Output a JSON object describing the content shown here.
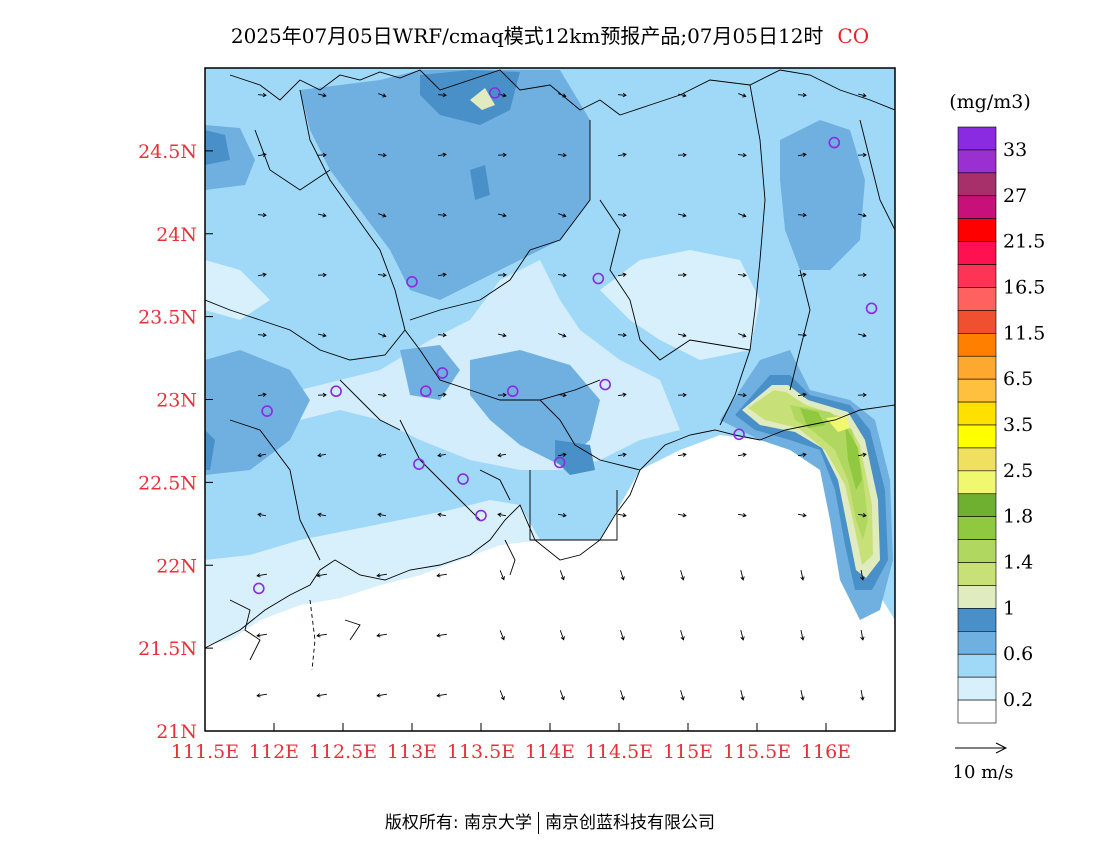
{
  "title": {
    "main": "2025年07月05日WRF/cmaq模式12km预报产品;07月05日12时",
    "species": "CO"
  },
  "map": {
    "lon_range": [
      111.5,
      116.5
    ],
    "lat_range": [
      21.0,
      25.0
    ],
    "lon_ticks": [
      "111.5E",
      "112E",
      "112.5E",
      "113E",
      "113.5E",
      "114E",
      "114.5E",
      "115E",
      "115.5E",
      "116E"
    ],
    "lat_ticks": [
      "24.5N",
      "24N",
      "23.5N",
      "23N",
      "22.5N",
      "22N",
      "21.5N",
      "21N"
    ],
    "tick_color": "#e8303a",
    "stations_count_note": "",
    "stations": [
      {
        "lon": 113.6,
        "lat": 24.85
      },
      {
        "lon": 116.06,
        "lat": 24.55
      },
      {
        "lon": 113.0,
        "lat": 23.71
      },
      {
        "lon": 114.35,
        "lat": 23.73
      },
      {
        "lon": 116.33,
        "lat": 23.55
      },
      {
        "lon": 113.22,
        "lat": 23.16
      },
      {
        "lon": 112.45,
        "lat": 23.05
      },
      {
        "lon": 113.1,
        "lat": 23.05
      },
      {
        "lon": 113.73,
        "lat": 23.05
      },
      {
        "lon": 114.4,
        "lat": 23.09
      },
      {
        "lon": 111.95,
        "lat": 22.93
      },
      {
        "lon": 115.37,
        "lat": 22.79
      },
      {
        "lon": 113.05,
        "lat": 22.61
      },
      {
        "lon": 114.07,
        "lat": 22.62
      },
      {
        "lon": 113.37,
        "lat": 22.52
      },
      {
        "lon": 113.5,
        "lat": 22.3
      },
      {
        "lon": 111.89,
        "lat": 21.86
      }
    ]
  },
  "legend": {
    "unit": "(mg/m3)",
    "labels": [
      "33",
      "27",
      "21.5",
      "16.5",
      "11.5",
      "6.5",
      "3.5",
      "2.5",
      "1.8",
      "1.4",
      "1",
      "0.6",
      "0.2"
    ],
    "colors": [
      "#8a2be2",
      "#9b30d0",
      "#a8306a",
      "#c8107a",
      "#ff0000",
      "#ff1050",
      "#ff3355",
      "#ff6060",
      "#f05030",
      "#ff8000",
      "#ffa830",
      "#ffc040",
      "#ffe000",
      "#ffff00",
      "#f0e060",
      "#f0f870",
      "#70b030",
      "#90c840",
      "#b0d860",
      "#c8e078",
      "#e0ecc0",
      "#4a90c8",
      "#70b0e0",
      "#a0d8f8",
      "#d8f0fc",
      "#ffffff"
    ]
  },
  "wind_scale": {
    "label": "10 m/s"
  },
  "footer": {
    "left": "版权所有: 南京大学",
    "right": "南京创蓝科技有限公司"
  }
}
